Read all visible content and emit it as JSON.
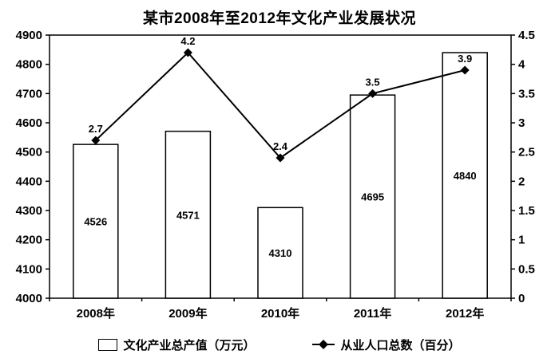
{
  "chart_data": {
    "type": "bar+line",
    "title": "某市2008年至2012年文化产业发展状况",
    "categories": [
      "2008年",
      "2009年",
      "2010年",
      "2011年",
      "2012年"
    ],
    "series": [
      {
        "name": "文化产业总产值（万元）",
        "type": "bar",
        "axis": "left",
        "values": [
          4526,
          4571,
          4310,
          4695,
          4840
        ]
      },
      {
        "name": "从业人口总数（百分）",
        "type": "line",
        "axis": "right",
        "values": [
          2.7,
          4.2,
          2.4,
          3.5,
          3.9
        ]
      }
    ],
    "left_axis": {
      "range": [
        4000,
        4900
      ],
      "step": 100,
      "ticks": [
        "4000",
        "4100",
        "4200",
        "4300",
        "4400",
        "4500",
        "4600",
        "4700",
        "4800",
        "4900"
      ]
    },
    "right_axis": {
      "range": [
        0,
        4.5
      ],
      "step": 0.5,
      "ticks": [
        "0",
        "0.5",
        "1",
        "1.5",
        "2",
        "2.5",
        "3",
        "3.5",
        "4",
        "4.5"
      ]
    },
    "layout": {
      "grid": false,
      "legend_position": "bottom",
      "plot_background": "#ffffff"
    },
    "colors": {
      "bar_fill": "#ffffff",
      "bar_stroke": "#000000",
      "line": "#000000",
      "text": "#000000"
    }
  }
}
